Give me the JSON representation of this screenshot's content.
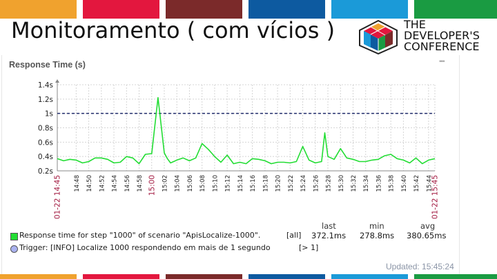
{
  "slide": {
    "title": "Monitoramento ( com vícios )",
    "top_bar_colors": [
      "#f0a22e",
      "#e3173e",
      "#7b2a2a",
      "#0d5aa0",
      "#1b9ad8",
      "#1a9b42"
    ]
  },
  "logo": {
    "line1": "THE",
    "line2": "DEVELOPER'S",
    "line3": "CONFERENCE"
  },
  "panel": {
    "title": "Response Time (s)",
    "menu_icon": "dots-icon",
    "updated": "Updated: 15:45:24"
  },
  "legend": {
    "row1_label": "Response time for step \"1000\" of scenario \"ApisLocalize-1000\".",
    "row1_scope": "[all]",
    "row1_color": "#22dd33",
    "row2_label": "Trigger: [INFO] Localize 1000 respondendo em mais de 1 segundo",
    "row2_condition": "[> 1]",
    "row2_color": "#aab2f0",
    "col_last": "last",
    "col_min": "min",
    "col_avg": "avg",
    "val_last": "372.1ms",
    "val_min": "278.8ms",
    "val_avg": "380.65ms"
  },
  "chart_data": {
    "type": "line",
    "title": "Response Time (s)",
    "ylim": [
      0.2,
      1.4
    ],
    "y_ticks": [
      "0.2s",
      "0.4s",
      "0.6s",
      "0.8s",
      "1s",
      "1.2s",
      "1.4s"
    ],
    "y_tick_values": [
      0.2,
      0.4,
      0.6,
      0.8,
      1.0,
      1.2,
      1.4
    ],
    "x_tick_labels": [
      "01-22 14:45",
      "14:48",
      "14:50",
      "14:52",
      "14:54",
      "14:56",
      "14:58",
      "15:00",
      "15:02",
      "15:04",
      "15:06",
      "15:08",
      "15:10",
      "15:12",
      "15:14",
      "15:16",
      "15:18",
      "15:20",
      "15:22",
      "15:24",
      "15:26",
      "15:28",
      "15:30",
      "15:32",
      "15:34",
      "15:36",
      "15:38",
      "15:40",
      "15:42",
      "15:44",
      "01-22 15:45"
    ],
    "x_tick_minutes": [
      0,
      3,
      5,
      7,
      9,
      11,
      13,
      15,
      17,
      19,
      21,
      23,
      25,
      27,
      29,
      31,
      33,
      35,
      37,
      39,
      41,
      43,
      45,
      47,
      49,
      51,
      53,
      55,
      57,
      59,
      60
    ],
    "x_tick_highlight": [
      "01-22 14:45",
      "15:00",
      "01-22 15:45"
    ],
    "grid": true,
    "threshold": {
      "name": "Trigger: [INFO] Localize 1000 respondendo em mais de 1 segundo",
      "value": 1.0,
      "color": "#1f2a6b"
    },
    "series": [
      {
        "name": "Response time for step \"1000\" of scenario \"ApisLocalize-1000\".",
        "color": "#22dd33",
        "x": [
          0,
          1,
          2,
          3,
          4,
          5,
          6,
          7,
          8,
          9,
          10,
          11,
          12,
          13,
          14,
          15,
          16,
          17,
          17.5,
          18,
          19,
          20,
          21,
          22,
          23,
          24,
          24.5,
          25,
          26,
          27,
          28,
          29,
          30,
          31,
          32,
          33,
          34,
          35,
          36,
          37,
          38,
          39,
          40,
          41,
          42,
          42.5,
          43,
          44,
          45,
          46,
          47,
          48,
          49,
          50,
          51,
          52,
          53,
          54,
          55,
          56,
          57,
          58,
          59,
          60
        ],
        "y": [
          0.37,
          0.34,
          0.36,
          0.35,
          0.31,
          0.33,
          0.38,
          0.38,
          0.36,
          0.31,
          0.32,
          0.4,
          0.38,
          0.3,
          0.43,
          0.44,
          1.22,
          0.45,
          0.37,
          0.31,
          0.35,
          0.38,
          0.34,
          0.38,
          0.58,
          0.5,
          0.45,
          0.4,
          0.32,
          0.42,
          0.3,
          0.32,
          0.3,
          0.37,
          0.36,
          0.34,
          0.3,
          0.32,
          0.32,
          0.31,
          0.33,
          0.54,
          0.35,
          0.31,
          0.33,
          0.73,
          0.4,
          0.36,
          0.51,
          0.38,
          0.36,
          0.33,
          0.33,
          0.35,
          0.36,
          0.41,
          0.43,
          0.37,
          0.35,
          0.31,
          0.38,
          0.3,
          0.35,
          0.37
        ]
      }
    ]
  }
}
